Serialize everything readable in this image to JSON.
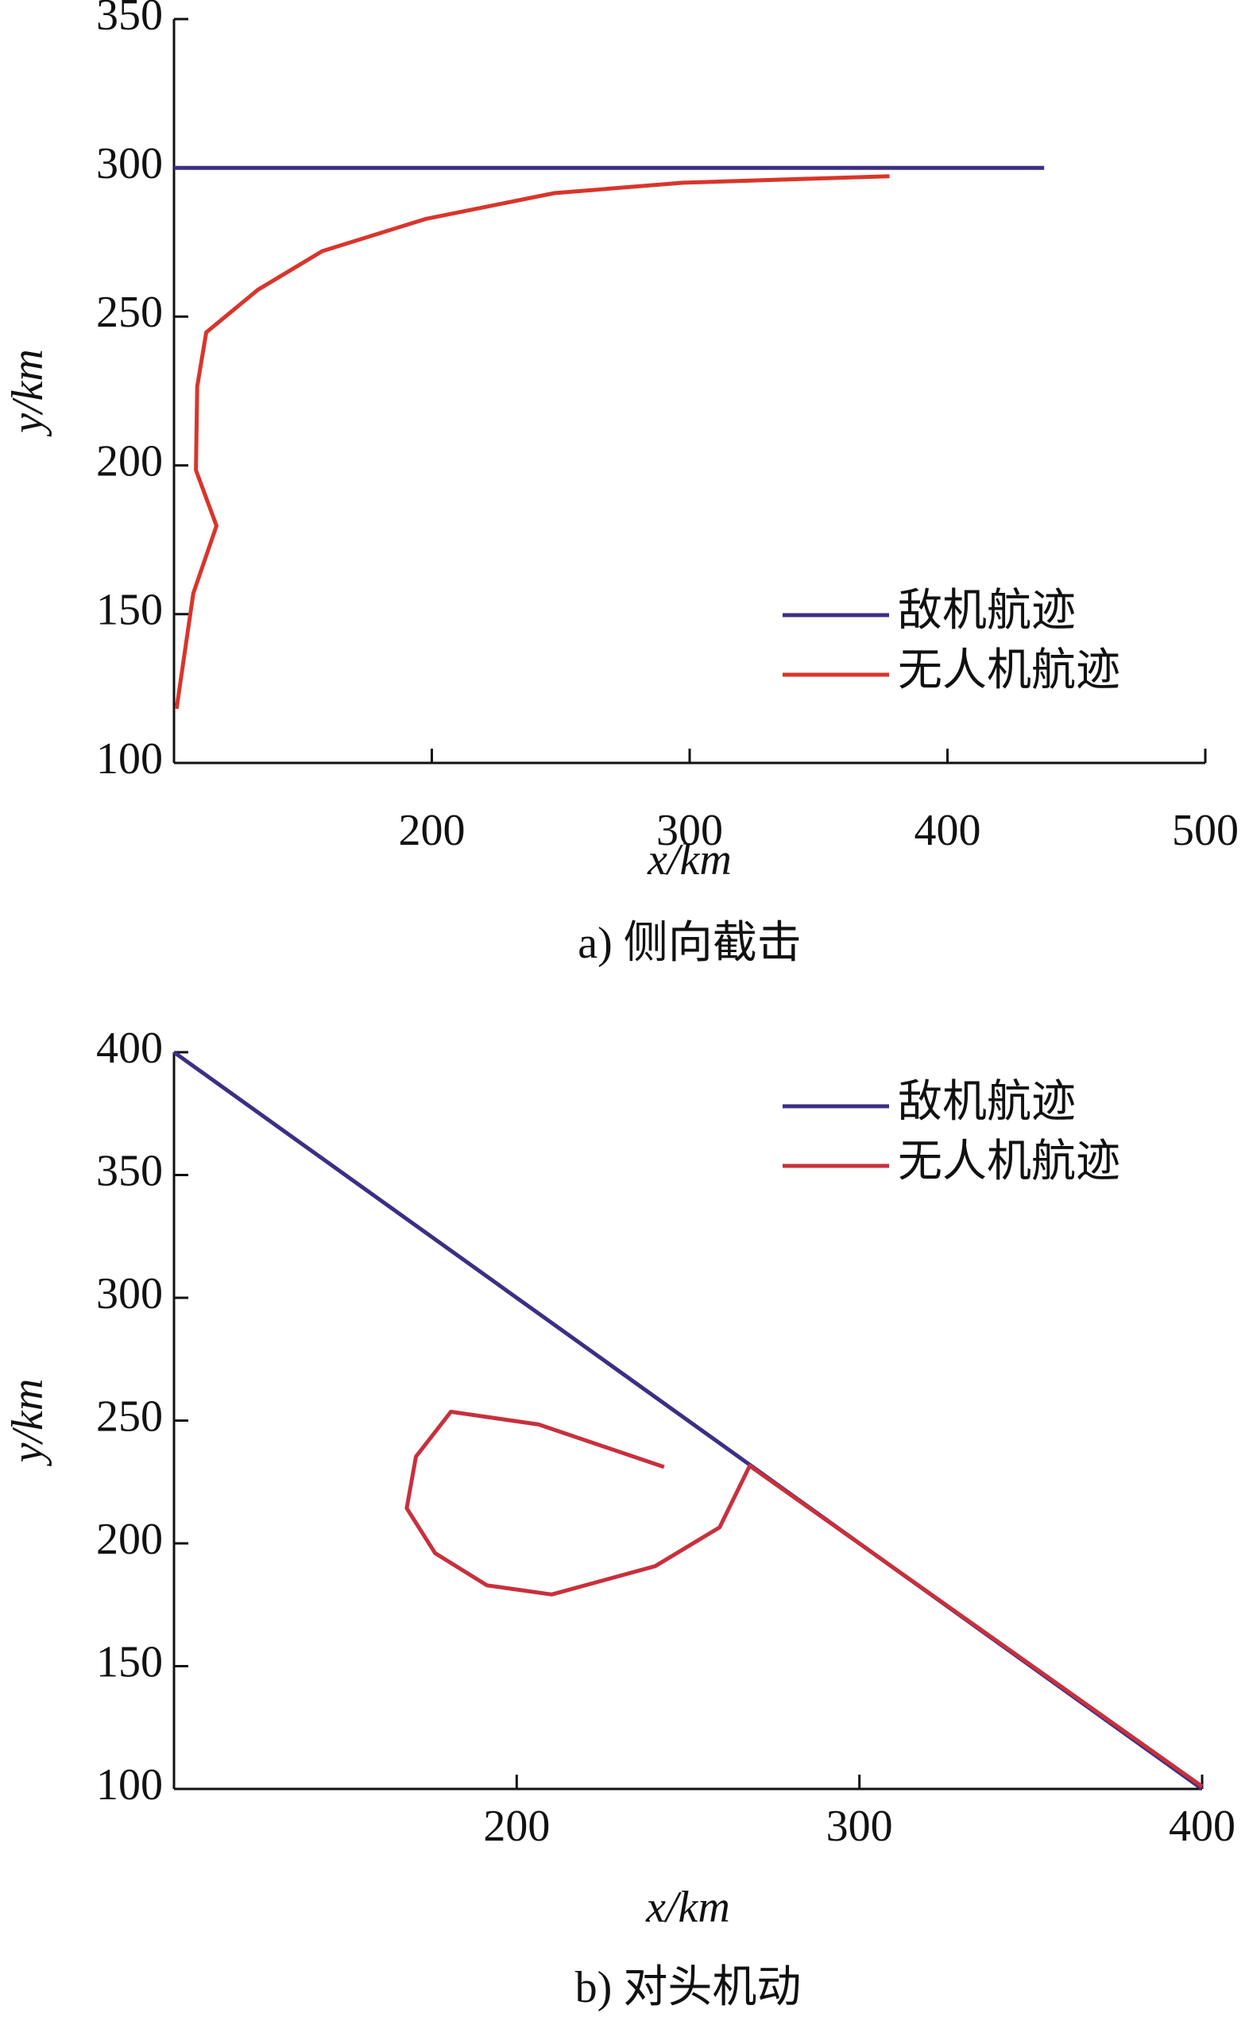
{
  "chart_data": [
    {
      "type": "line",
      "caption": "a) 侧向截击",
      "xlabel": "x/km",
      "ylabel": "y/km",
      "xlim": [
        100,
        500
      ],
      "xticks": [
        200,
        300,
        400,
        500
      ],
      "ylim": [
        100,
        350
      ],
      "yticks": [
        100,
        150,
        200,
        250,
        300,
        350
      ],
      "legend": "lower right",
      "series": [
        {
          "name": "敌机航迹",
          "color": "#3b2f86",
          "x": [
            100,
            437.5
          ],
          "values": [
            300,
            300
          ]
        },
        {
          "name": "无人机航迹",
          "color": "#d9352b",
          "x": [
            101,
            107.5,
            116.5,
            108.5,
            109,
            112.5,
            132.5,
            157.5,
            197.5,
            247.5,
            297.5,
            377.5
          ],
          "values": [
            118.2,
            157,
            179.7,
            198.4,
            226.5,
            244.7,
            259,
            272,
            282.8,
            291.5,
            295,
            297.2
          ]
        }
      ]
    },
    {
      "type": "line",
      "caption": "b) 对头机动",
      "xlabel": "x/km",
      "ylabel": "y/km",
      "xlim": [
        100,
        400
      ],
      "xticks": [
        200,
        300,
        400
      ],
      "ylim": [
        100,
        400
      ],
      "yticks": [
        100,
        150,
        200,
        250,
        300,
        350,
        400
      ],
      "legend": "upper right",
      "series": [
        {
          "name": "敌机航迹",
          "color": "#3b2f86",
          "x": [
            100,
            400
          ],
          "values": [
            400,
            100
          ]
        },
        {
          "name": "无人机航迹",
          "color": "#c8303c",
          "x": [
            400,
            268,
            259.2,
            240.4,
            210.2,
            191.3,
            176.2,
            167.9,
            170.6,
            180.8,
            206.4,
            243
          ],
          "values": [
            101,
            231.6,
            206.5,
            190.7,
            179.2,
            182.9,
            196,
            214.3,
            235.3,
            253.6,
            248.4,
            231.1
          ]
        }
      ]
    }
  ]
}
